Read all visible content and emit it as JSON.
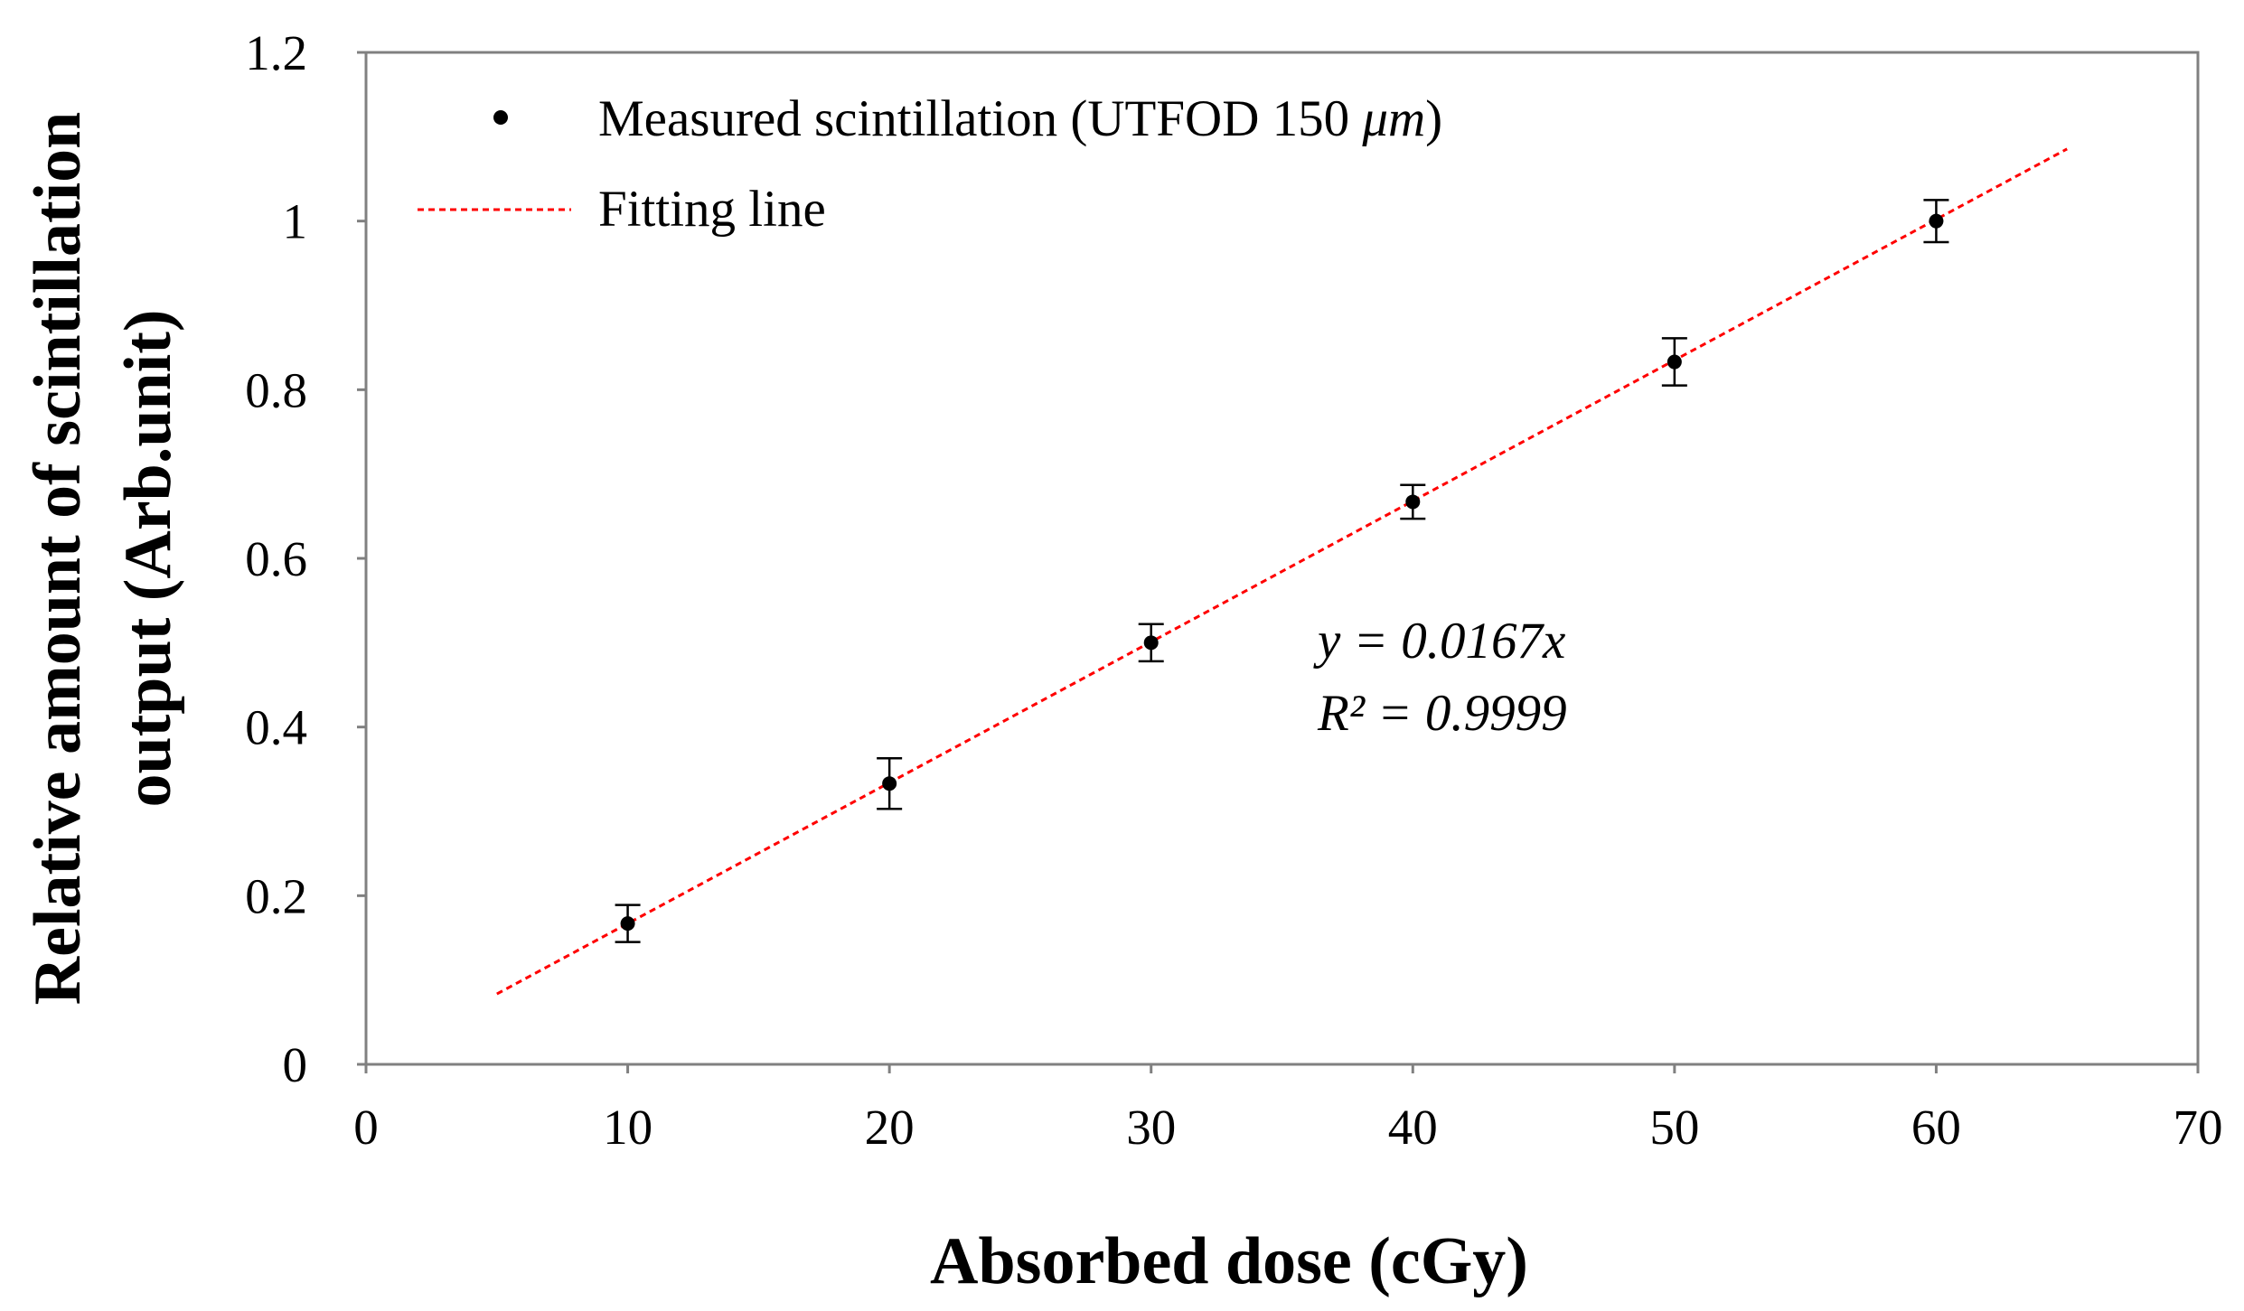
{
  "chart_data": {
    "type": "scatter",
    "xlabel": "Absorbed dose (cGy)",
    "ylabel_line1": "Relative amount of scintillation",
    "ylabel_line2": "output (Arb.unit)",
    "xlim": [
      0,
      70
    ],
    "ylim": [
      0,
      1.2
    ],
    "x_ticks": [
      "0",
      "10",
      "20",
      "30",
      "40",
      "50",
      "60",
      "70"
    ],
    "y_ticks": [
      "0",
      "0.2",
      "0.4",
      "0.6",
      "0.8",
      "1",
      "1.2"
    ],
    "x_tick_values": [
      0,
      10,
      20,
      30,
      40,
      50,
      60,
      70
    ],
    "y_tick_values": [
      0,
      0.2,
      0.4,
      0.6,
      0.8,
      1.0,
      1.2
    ],
    "grid": false,
    "series": [
      {
        "name": "Measured scintillation (UTFOD 150 μm)",
        "kind": "scatter-with-errorbars",
        "color": "#000000",
        "x": [
          10,
          20,
          30,
          40,
          50,
          60
        ],
        "y": [
          0.167,
          0.333,
          0.5,
          0.667,
          0.833,
          1.0
        ],
        "error": [
          0.022,
          0.03,
          0.022,
          0.02,
          0.028,
          0.025
        ]
      },
      {
        "name": "Fitting line",
        "kind": "line-dashed",
        "color": "#ff0000",
        "slope": 0.0167,
        "intercept": 0,
        "x_range": [
          5,
          65
        ]
      }
    ],
    "legend": {
      "position": "top-left",
      "measured_label": "Measured scintillation  (UTFOD 150 ",
      "measured_unit": "μm",
      "measured_close": ")",
      "fit_label": "Fitting line"
    },
    "annotations": {
      "equation": "y = 0.0167x",
      "r_squared": "R² = 0.9999"
    }
  }
}
